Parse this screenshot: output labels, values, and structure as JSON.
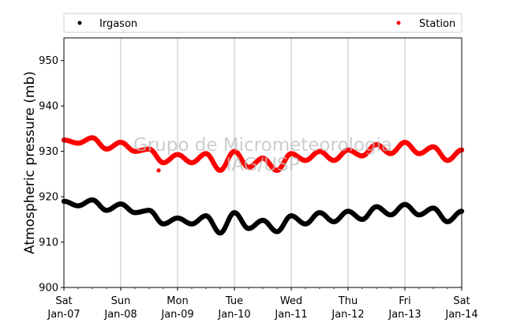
{
  "chart_data": {
    "type": "scatter",
    "ylabel": "Atmospheric pressure (mb)",
    "ylim": [
      900,
      955
    ],
    "yticks": [
      900,
      910,
      920,
      930,
      940,
      950
    ],
    "xlim_days": [
      0,
      7
    ],
    "xticks": [
      {
        "day": "Sat",
        "date": "Jan-07"
      },
      {
        "day": "Sun",
        "date": "Jan-08"
      },
      {
        "day": "Mon",
        "date": "Jan-09"
      },
      {
        "day": "Tue",
        "date": "Jan-10"
      },
      {
        "day": "Wed",
        "date": "Jan-11"
      },
      {
        "day": "Thu",
        "date": "Jan-12"
      },
      {
        "day": "Fri",
        "date": "Jan-13"
      },
      {
        "day": "Sat",
        "date": "Jan-14"
      }
    ],
    "grid": "vertical",
    "legend_position": "top",
    "watermark": [
      "Grupo de Micrometeorologia",
      "IAG/USP"
    ],
    "series": [
      {
        "name": "Irgason",
        "color": "#000000",
        "x": [
          "Jan-07 00:00",
          "Jan-07 06:00",
          "Jan-07 12:00",
          "Jan-07 18:00",
          "Jan-08 00:00",
          "Jan-08 06:00",
          "Jan-08 12:00",
          "Jan-08 18:00",
          "Jan-09 00:00",
          "Jan-09 06:00",
          "Jan-09 12:00",
          "Jan-09 18:00",
          "Jan-10 00:00",
          "Jan-10 06:00",
          "Jan-10 12:00",
          "Jan-10 18:00",
          "Jan-11 00:00",
          "Jan-11 06:00",
          "Jan-11 12:00",
          "Jan-11 18:00",
          "Jan-12 00:00",
          "Jan-12 06:00",
          "Jan-12 12:00",
          "Jan-12 18:00",
          "Jan-13 00:00",
          "Jan-13 06:00",
          "Jan-13 12:00",
          "Jan-13 18:00",
          "Jan-14 00:00"
        ],
        "y": [
          919.0,
          918.0,
          919.3,
          917.0,
          918.4,
          916.5,
          917.0,
          914.0,
          915.3,
          914.0,
          915.8,
          912.0,
          916.5,
          913.0,
          914.8,
          912.3,
          915.8,
          914.0,
          916.5,
          914.5,
          916.8,
          915.0,
          917.8,
          916.0,
          918.3,
          916.0,
          917.5,
          914.5,
          916.8
        ]
      },
      {
        "name": "Station",
        "color": "#ff0000",
        "x": [
          "Jan-07 00:00",
          "Jan-07 06:00",
          "Jan-07 12:00",
          "Jan-07 18:00",
          "Jan-08 00:00",
          "Jan-08 06:00",
          "Jan-08 12:00",
          "Jan-08 18:00",
          "Jan-09 00:00",
          "Jan-09 06:00",
          "Jan-09 12:00",
          "Jan-09 18:00",
          "Jan-10 00:00",
          "Jan-10 06:00",
          "Jan-10 12:00",
          "Jan-10 18:00",
          "Jan-11 00:00",
          "Jan-11 06:00",
          "Jan-11 12:00",
          "Jan-11 18:00",
          "Jan-12 00:00",
          "Jan-12 06:00",
          "Jan-12 12:00",
          "Jan-12 18:00",
          "Jan-13 00:00",
          "Jan-13 06:00",
          "Jan-13 12:00",
          "Jan-13 18:00",
          "Jan-14 00:00"
        ],
        "y": [
          932.5,
          931.8,
          933.0,
          930.5,
          932.0,
          930.0,
          930.5,
          927.5,
          929.3,
          927.5,
          929.5,
          925.8,
          930.0,
          926.5,
          928.5,
          925.8,
          929.5,
          928.0,
          930.0,
          928.0,
          930.3,
          929.0,
          931.5,
          929.5,
          932.0,
          929.5,
          931.0,
          928.0,
          930.3
        ],
        "outliers": [
          {
            "x": "Jan-08 16:00",
            "y": 925.8
          }
        ]
      }
    ]
  }
}
